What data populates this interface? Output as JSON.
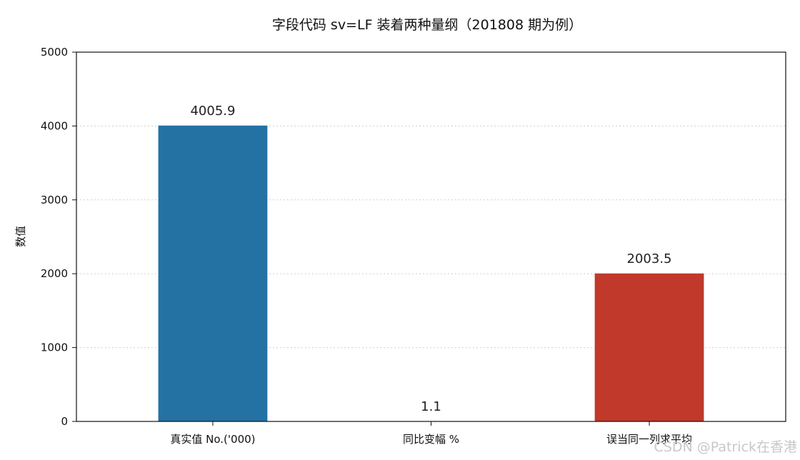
{
  "chart_data": {
    "type": "bar",
    "title": "字段代码 sv=LF 装着两种量纲（201808 期为例）",
    "xlabel": "",
    "ylabel": "数值",
    "categories": [
      "真实值 No.('000)",
      "同比变幅 %",
      "误当同一列求平均"
    ],
    "values": [
      4005.9,
      1.1,
      2003.5
    ],
    "data_labels": [
      "4005.9",
      "1.1",
      "2003.5"
    ],
    "colors": [
      "#2471a3",
      "#2471a3",
      "#c0392b"
    ],
    "ylim": [
      0,
      5000
    ],
    "yticks": [
      "0",
      "1000",
      "2000",
      "3000",
      "4000",
      "5000"
    ],
    "grid": "horizontal-dotted",
    "legend": "none"
  },
  "watermark": "CSDN @Patrick在香港"
}
